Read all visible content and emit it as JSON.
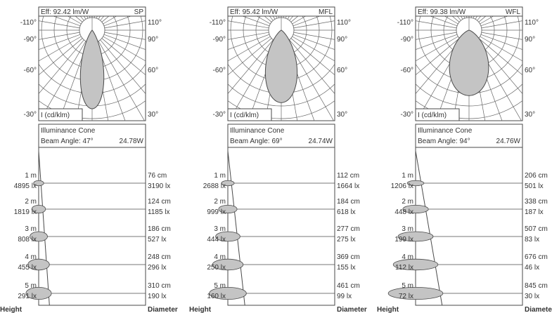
{
  "chart_data": [
    {
      "type": "polar-photometric",
      "name": "SP",
      "efficiency": "Eff: 92.42 lm/W",
      "unit_label": "I (cd/klm)",
      "angle_labels": {
        "left": [
          "-110°",
          "-90°",
          "-60°",
          "-30°"
        ],
        "right": [
          "110°",
          "90°",
          "60°",
          "30°"
        ]
      },
      "beam_half_angle_deg": 23.5,
      "cone_title": "Illuminance Cone",
      "beam_angle": "Beam Angle: 47°",
      "power": "24.78W",
      "rows": [
        {
          "height": "1 m",
          "lux_center": "4895 lx",
          "diameter": "76 cm",
          "lux_edge": "3190 lx",
          "lux": 4895
        },
        {
          "height": "2 m",
          "lux_center": "1819 lx",
          "diameter": "124 cm",
          "lux_edge": "1185 lx",
          "lux": 1819
        },
        {
          "height": "3 m",
          "lux_center": "808 lx",
          "diameter": "186 cm",
          "lux_edge": "527 lx",
          "lux": 808
        },
        {
          "height": "4 m",
          "lux_center": "455 lx",
          "diameter": "248 cm",
          "lux_edge": "296 lx",
          "lux": 455
        },
        {
          "height": "5 m",
          "lux_center": "291 lx",
          "diameter": "310 cm",
          "lux_edge": "190 lx",
          "lux": 291
        }
      ],
      "xlabel_left": "Height",
      "xlabel_right": "Diameter"
    },
    {
      "type": "polar-photometric",
      "name": "MFL",
      "efficiency": "Eff: 95.42 lm/W",
      "unit_label": "I (cd/klm)",
      "angle_labels": {
        "left": [
          "-110°",
          "-90°",
          "-60°",
          "-30°"
        ],
        "right": [
          "110°",
          "90°",
          "60°",
          "30°"
        ]
      },
      "beam_half_angle_deg": 34.5,
      "cone_title": "Illuminance Cone",
      "beam_angle": "Beam Angle: 69°",
      "power": "24.74W",
      "rows": [
        {
          "height": "1 m",
          "lux_center": "2688 lx",
          "diameter": "112 cm",
          "lux_edge": "1664 lx",
          "lux": 2688
        },
        {
          "height": "2 m",
          "lux_center": "999 lx",
          "diameter": "184 cm",
          "lux_edge": "618 lx",
          "lux": 999
        },
        {
          "height": "3 m",
          "lux_center": "444 lx",
          "diameter": "277 cm",
          "lux_edge": "275 lx",
          "lux": 444
        },
        {
          "height": "4 m",
          "lux_center": "250 lx",
          "diameter": "369 cm",
          "lux_edge": "155 lx",
          "lux": 250
        },
        {
          "height": "5 m",
          "lux_center": "160 lx",
          "diameter": "461 cm",
          "lux_edge": "99 lx",
          "lux": 160
        }
      ],
      "xlabel_left": "Height",
      "xlabel_right": "Diameter"
    },
    {
      "type": "polar-photometric",
      "name": "WFL",
      "efficiency": "Eff: 99.38 lm/W",
      "unit_label": "I (cd/klm)",
      "angle_labels": {
        "left": [
          "-110°",
          "-90°",
          "-60°",
          "-30°"
        ],
        "right": [
          "110°",
          "90°",
          "60°",
          "30°"
        ]
      },
      "beam_half_angle_deg": 47,
      "cone_title": "Illuminance Cone",
      "beam_angle": "Beam Angle: 94°",
      "power": "24.76W",
      "rows": [
        {
          "height": "1 m",
          "lux_center": "1206 lx",
          "diameter": "206 cm",
          "lux_edge": "501 lx",
          "lux": 1206
        },
        {
          "height": "2 m",
          "lux_center": "448 lx",
          "diameter": "338 cm",
          "lux_edge": "187 lx",
          "lux": 448
        },
        {
          "height": "3 m",
          "lux_center": "199 lx",
          "diameter": "507 cm",
          "lux_edge": "83 lx",
          "lux": 199
        },
        {
          "height": "4 m",
          "lux_center": "112 lx",
          "diameter": "676 cm",
          "lux_edge": "46 lx",
          "lux": 112
        },
        {
          "height": "5 m",
          "lux_center": "72 lx",
          "diameter": "845 cm",
          "lux_edge": "30 lx",
          "lux": 72
        }
      ],
      "xlabel_left": "Height",
      "xlabel_right": "Diameter"
    }
  ],
  "colors": {
    "fill": "#c4c4c4",
    "line": "#4a4a4a",
    "grid": "#666666"
  }
}
